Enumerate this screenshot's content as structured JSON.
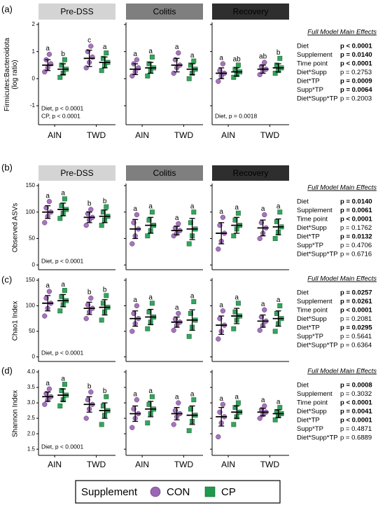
{
  "chart_data": [
    {
      "type": "dot-plot",
      "label": "(a)",
      "ylabel": [
        "Firmicutes:Bacteroidota",
        "(log ratio)"
      ],
      "ylim": [
        -1.7,
        2
      ],
      "yticks": [
        -1,
        0,
        1,
        2
      ],
      "panels": [
        "Pre-DSS",
        "Colitis",
        "Recovery"
      ],
      "categories": [
        "AIN",
        "TWD"
      ],
      "notes": [
        [
          "Diet, p < 0.0001",
          "CP, p < 0.0001"
        ],
        [],
        [
          "Diet, p = 0.0018"
        ]
      ],
      "legend_title": "Supplement",
      "series": [
        {
          "name": "CON",
          "color": "#9b66b4",
          "marker": "circle",
          "mean": [
            0.5,
            0.75,
            0.35,
            0.5,
            0.2,
            0.35
          ],
          "sd": [
            0.2,
            0.3,
            0.2,
            0.25,
            0.2,
            0.15
          ],
          "letters": [
            "a",
            "c",
            "a",
            "a",
            "a",
            "ab"
          ],
          "points": [
            [
              0.25,
              0.4,
              0.55,
              0.7,
              0.9
            ],
            [
              0.4,
              0.6,
              0.8,
              1.0,
              1.2
            ],
            [
              0.1,
              0.25,
              0.4,
              0.55,
              0.7
            ],
            [
              0.2,
              0.4,
              0.5,
              0.7,
              0.95
            ],
            [
              -0.1,
              0.1,
              0.2,
              0.3,
              0.55
            ],
            [
              0.15,
              0.3,
              0.35,
              0.45,
              0.6
            ]
          ]
        },
        {
          "name": "CP",
          "color": "#1f9a4c",
          "marker": "square",
          "mean": [
            0.35,
            0.6,
            0.4,
            0.35,
            0.25,
            0.4
          ],
          "sd": [
            0.2,
            0.2,
            0.2,
            0.2,
            0.15,
            0.15
          ],
          "letters": [
            "b",
            "a",
            "a",
            "a",
            "ab",
            "b"
          ],
          "points": [
            [
              0.05,
              0.2,
              0.35,
              0.5,
              0.7
            ],
            [
              0.3,
              0.5,
              0.6,
              0.75,
              0.95
            ],
            [
              0.1,
              0.3,
              0.4,
              0.55,
              0.8
            ],
            [
              0.0,
              0.2,
              0.35,
              0.5,
              0.65
            ],
            [
              0.05,
              0.15,
              0.25,
              0.35,
              0.5
            ],
            [
              0.2,
              0.3,
              0.4,
              0.5,
              0.75
            ]
          ]
        }
      ],
      "effects": {
        "title": "Full Model Main Effects",
        "rows": [
          {
            "term": "Diet",
            "value": "p < 0.0001",
            "bold": true
          },
          {
            "term": "Supplement",
            "value": "p = 0.0140",
            "bold": true
          },
          {
            "term": "Time point",
            "value": "p < 0.0001",
            "bold": true
          },
          {
            "term": "Diet*Supp",
            "value": "p = 0.2753",
            "bold": false
          },
          {
            "term": "Diet*TP",
            "value": "p = 0.0009",
            "bold": true
          },
          {
            "term": "Supp*TP",
            "value": "p = 0.0064",
            "bold": true
          },
          {
            "term": "Diet*Supp*TP",
            "value": "p = 0.2003",
            "bold": false
          }
        ]
      }
    },
    {
      "type": "dot-plot",
      "label": "(b)",
      "ylabel": [
        "Observed ASVs"
      ],
      "ylim": [
        -9,
        150
      ],
      "yticks": [
        0,
        50,
        100,
        150
      ],
      "panels": [
        "Pre-DSS",
        "Colitis",
        "Recovery"
      ],
      "notes": [
        [
          "Diet, p < 0.0001"
        ],
        [],
        []
      ],
      "series": [
        {
          "name": "CON",
          "color": "#9b66b4",
          "marker": "circle",
          "mean": [
            100,
            90,
            68,
            65,
            60,
            70
          ],
          "sd": [
            12,
            10,
            18,
            8,
            20,
            15
          ],
          "letters": [
            "a",
            "b",
            "a",
            "a",
            "a",
            "a"
          ],
          "points": [
            [
              80,
              92,
              100,
              108,
              120
            ],
            [
              75,
              85,
              90,
              97,
              105
            ],
            [
              40,
              55,
              68,
              80,
              95
            ],
            [
              55,
              60,
              65,
              70,
              78
            ],
            [
              30,
              45,
              60,
              75,
              90
            ],
            [
              50,
              60,
              70,
              80,
              95
            ]
          ]
        },
        {
          "name": "CP",
          "color": "#1f9a4c",
          "marker": "square",
          "mean": [
            105,
            92,
            75,
            68,
            75,
            72
          ],
          "sd": [
            12,
            12,
            15,
            20,
            15,
            15
          ],
          "letters": [
            "a",
            "b",
            "a",
            "a",
            "a",
            "a"
          ],
          "points": [
            [
              88,
              98,
              105,
              112,
              125
            ],
            [
              75,
              85,
              92,
              100,
              110
            ],
            [
              55,
              65,
              75,
              85,
              100
            ],
            [
              40,
              55,
              68,
              80,
              100
            ],
            [
              55,
              68,
              75,
              85,
              98
            ],
            [
              50,
              62,
              72,
              82,
              100
            ]
          ]
        }
      ],
      "effects": {
        "title": "Full Model Main Effects",
        "rows": [
          {
            "term": "Diet",
            "value": "p = 0.0140",
            "bold": true
          },
          {
            "term": "Supplement",
            "value": "p = 0.0061",
            "bold": true
          },
          {
            "term": "Time point",
            "value": "p < 0.0001",
            "bold": true
          },
          {
            "term": "Diet*Supp",
            "value": "p = 0.1762",
            "bold": false
          },
          {
            "term": "Diet*TP",
            "value": "p = 0.0132",
            "bold": true
          },
          {
            "term": "Supp*TP",
            "value": "p = 0.4706",
            "bold": false
          },
          {
            "term": "Diet*Supp*TP",
            "value": "p = 0.6716",
            "bold": false
          }
        ]
      }
    },
    {
      "type": "dot-plot",
      "label": "(c)",
      "ylabel": [
        "Chao1 Index"
      ],
      "ylim": [
        -9,
        150
      ],
      "yticks": [
        0,
        50,
        100,
        150
      ],
      "notes": [
        [
          "Diet, p < 0.0001"
        ],
        [],
        []
      ],
      "series": [
        {
          "name": "CON",
          "color": "#9b66b4",
          "marker": "circle",
          "mean": [
            105,
            95,
            75,
            68,
            62,
            70
          ],
          "sd": [
            15,
            12,
            15,
            10,
            18,
            12
          ],
          "letters": [
            "a",
            "b",
            "a",
            "a",
            "a",
            "a"
          ],
          "points": [
            [
              80,
              95,
              105,
              115,
              128
            ],
            [
              75,
              88,
              95,
              102,
              115
            ],
            [
              50,
              65,
              75,
              85,
              100
            ],
            [
              52,
              62,
              68,
              74,
              85
            ],
            [
              35,
              50,
              62,
              75,
              90
            ],
            [
              52,
              62,
              70,
              78,
              92
            ]
          ]
        },
        {
          "name": "CP",
          "color": "#1f9a4c",
          "marker": "square",
          "mean": [
            110,
            97,
            78,
            72,
            80,
            75
          ],
          "sd": [
            12,
            15,
            15,
            20,
            15,
            15
          ],
          "letters": [
            "a",
            "b",
            "a",
            "a",
            "a",
            "a"
          ],
          "points": [
            [
              90,
              102,
              110,
              118,
              130
            ],
            [
              72,
              88,
              97,
              105,
              120
            ],
            [
              55,
              68,
              78,
              88,
              105
            ],
            [
              40,
              58,
              72,
              85,
              108
            ],
            [
              55,
              72,
              80,
              88,
              105
            ],
            [
              50,
              65,
              75,
              85,
              100
            ]
          ]
        }
      ],
      "effects": {
        "title": "Full Model Main Effects",
        "rows": [
          {
            "term": "Diet",
            "value": "p = 0.0257",
            "bold": true
          },
          {
            "term": "Supplement",
            "value": "p = 0.0261",
            "bold": true
          },
          {
            "term": "Time point",
            "value": "p < 0.0001",
            "bold": true
          },
          {
            "term": "Diet*Supp",
            "value": "p = 0.2081",
            "bold": false
          },
          {
            "term": "Diet*TP",
            "value": "p = 0.0295",
            "bold": true
          },
          {
            "term": "Supp*TP",
            "value": "p = 0.5641",
            "bold": false
          },
          {
            "term": "Diet*Supp*TP",
            "value": "p = 0.6364",
            "bold": false
          }
        ]
      }
    },
    {
      "type": "dot-plot",
      "label": "(d)",
      "ylabel": [
        "Shannon Index"
      ],
      "ylim": [
        1.3,
        4.0
      ],
      "yticks": [
        {
          "value": 1.5,
          "label": "1.5"
        },
        {
          "value": 2,
          "label": "2.0"
        },
        {
          "value": 2.5,
          "label": "2.5"
        },
        {
          "value": 3,
          "label": "3.0"
        },
        {
          "value": 3.5,
          "label": "3.5"
        },
        {
          "value": 4,
          "label": "4.0"
        }
      ],
      "categories": [
        "AIN",
        "TWD"
      ],
      "notes": [
        [
          "Diet, p < 0.0001"
        ],
        [],
        []
      ],
      "series": [
        {
          "name": "CON",
          "color": "#9b66b4",
          "marker": "circle",
          "mean": [
            3.2,
            2.95,
            2.65,
            2.65,
            2.55,
            2.7
          ],
          "sd": [
            0.15,
            0.25,
            0.25,
            0.2,
            0.3,
            0.12
          ],
          "letters": [
            "a",
            "b",
            "a",
            "a",
            "a",
            "a"
          ],
          "points": [
            [
              2.95,
              3.1,
              3.2,
              3.3,
              3.45
            ],
            [
              2.5,
              2.8,
              2.95,
              3.1,
              3.35
            ],
            [
              2.2,
              2.5,
              2.65,
              2.8,
              3.1
            ],
            [
              2.3,
              2.55,
              2.65,
              2.75,
              3.0
            ],
            [
              1.9,
              2.35,
              2.55,
              2.7,
              2.95
            ],
            [
              2.5,
              2.62,
              2.7,
              2.78,
              2.9
            ]
          ]
        },
        {
          "name": "CP",
          "color": "#1f9a4c",
          "marker": "square",
          "mean": [
            3.25,
            2.75,
            2.8,
            2.6,
            2.7,
            2.65
          ],
          "sd": [
            0.2,
            0.25,
            0.25,
            0.3,
            0.2,
            0.12
          ],
          "letters": [
            "a",
            "b",
            "a",
            "a",
            "a",
            "a"
          ],
          "points": [
            [
              2.9,
              3.1,
              3.25,
              3.4,
              3.6
            ],
            [
              2.3,
              2.6,
              2.75,
              2.9,
              3.2
            ],
            [
              2.35,
              2.65,
              2.8,
              2.95,
              3.2
            ],
            [
              2.1,
              2.4,
              2.6,
              2.8,
              3.1
            ],
            [
              2.3,
              2.55,
              2.7,
              2.85,
              3.0
            ],
            [
              2.45,
              2.58,
              2.65,
              2.72,
              2.85
            ]
          ]
        }
      ],
      "effects": {
        "title": "Full Model Main Effects",
        "rows": [
          {
            "term": "Diet",
            "value": "p = 0.0008",
            "bold": true
          },
          {
            "term": "Supplement",
            "value": "p = 0.3032",
            "bold": false
          },
          {
            "term": "Time point",
            "value": "p < 0.0001",
            "bold": true
          },
          {
            "term": "Diet*Supp",
            "value": "p = 0.0041",
            "bold": true
          },
          {
            "term": "Diet*TP",
            "value": "p < 0.0001",
            "bold": true
          },
          {
            "term": "Supp*TP",
            "value": "p = 0.4871",
            "bold": false
          },
          {
            "term": "Diet*Supp*TP",
            "value": "p = 0.6889",
            "bold": false
          }
        ]
      }
    }
  ]
}
